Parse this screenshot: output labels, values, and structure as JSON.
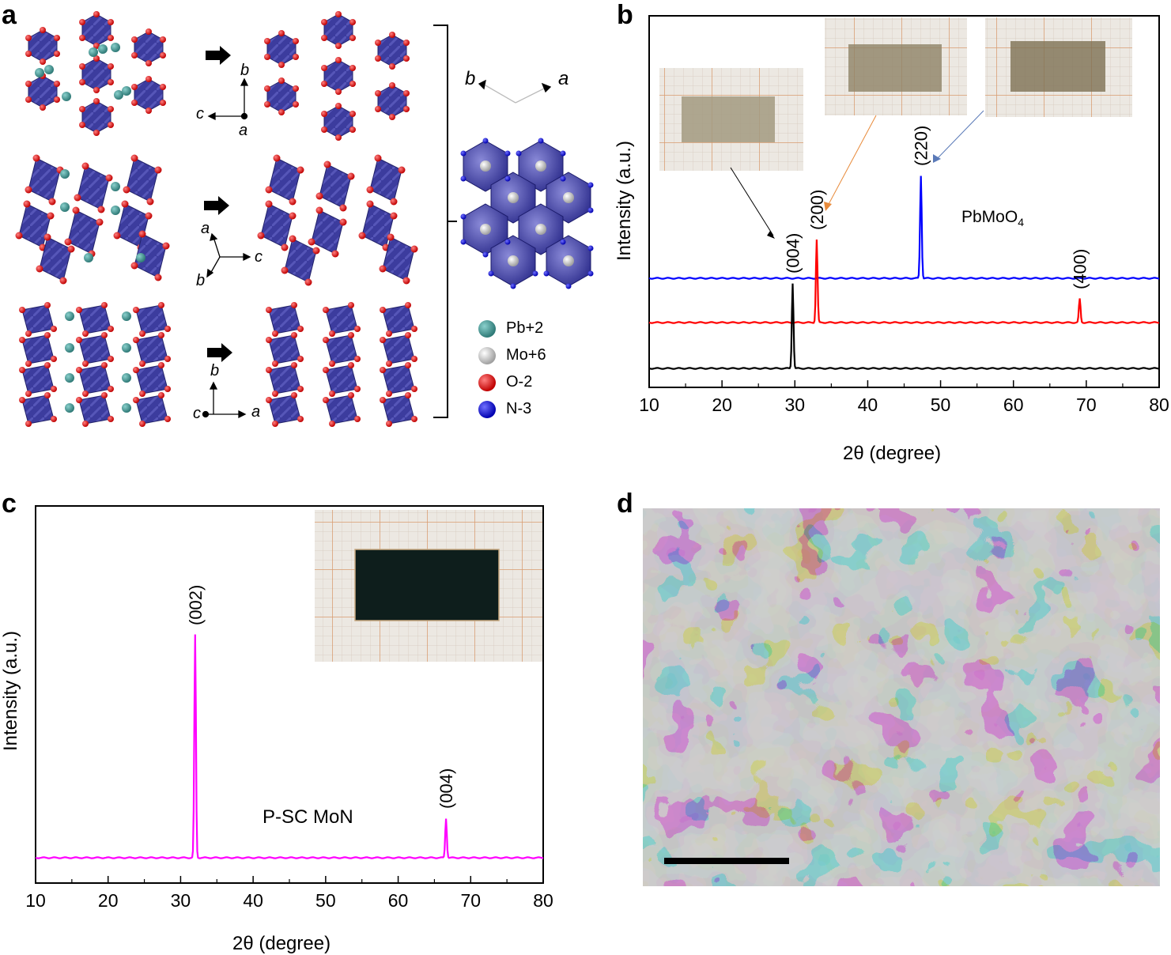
{
  "panel_a": {
    "letter": "a",
    "axes_rows": [
      {
        "v": "b",
        "h": "c",
        "o": "a"
      },
      {
        "t": "a",
        "r": "c",
        "b": "b"
      },
      {
        "v": "b",
        "h": "a",
        "o": "c"
      }
    ],
    "top_axes": {
      "left": "b",
      "right": "a"
    },
    "legend": [
      {
        "label": "Pb+2",
        "color": "#3f8f8c"
      },
      {
        "label": "Mo+6",
        "color": "#d8d8d8"
      },
      {
        "label": "O-2",
        "color": "#e01010"
      },
      {
        "label": "N-3",
        "color": "#1010d0"
      }
    ],
    "colors": {
      "polyhedra": "#3a3a9a",
      "oxygen": "#e01010",
      "nitrogen": "#1010d0",
      "lead": "#3f8f8c"
    }
  },
  "chart_data": [
    {
      "panel": "b",
      "type": "line",
      "xlabel": "2θ (degree)",
      "ylabel": "Intensity (a.u.)",
      "xlim": [
        10,
        80
      ],
      "xticks": [
        10,
        20,
        30,
        40,
        50,
        60,
        70,
        80
      ],
      "annotation": "PbMoO",
      "annotation_sub": "4",
      "series": [
        {
          "color": "#0000ff",
          "peaks": [
            {
              "x": 47.3,
              "label": "(220)"
            }
          ]
        },
        {
          "color": "#ff0000",
          "peaks": [
            {
              "x": 33.0,
              "label": "(200)"
            },
            {
              "x": 69.1,
              "label": "(400)"
            }
          ]
        },
        {
          "color": "#000000",
          "peaks": [
            {
              "x": 29.7,
              "label": "(004)"
            }
          ]
        }
      ]
    },
    {
      "panel": "c",
      "type": "line",
      "xlabel": "2θ (degree)",
      "ylabel": "Intensity (a.u.)",
      "xlim": [
        10,
        80
      ],
      "xticks": [
        10,
        20,
        30,
        40,
        50,
        60,
        70,
        80
      ],
      "annotation": "P-SC MoN",
      "series": [
        {
          "color": "#ff00ff",
          "peaks": [
            {
              "x": 32.0,
              "label": "(002)"
            },
            {
              "x": 66.6,
              "label": "(004)"
            }
          ]
        }
      ]
    }
  ],
  "panel_letters": {
    "b": "b",
    "c": "c",
    "d": "d"
  }
}
